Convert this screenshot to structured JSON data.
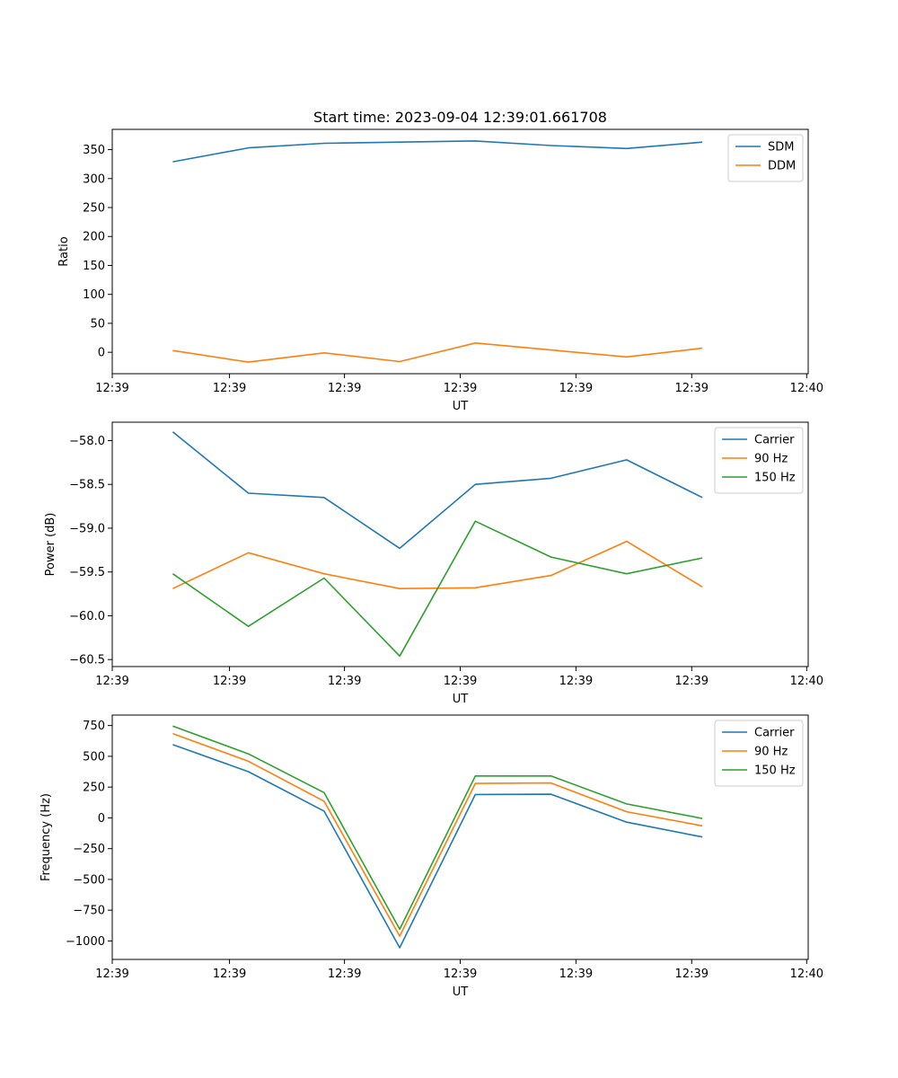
{
  "figure": {
    "title": "Start time: 2023-09-04 12:39:01.661708"
  },
  "chart_data": [
    {
      "type": "line",
      "title": "Start time: 2023-09-04 12:39:01.661708",
      "xlabel": "UT",
      "ylabel": "Ratio",
      "x": [
        1,
        2,
        3,
        4,
        5,
        6,
        7,
        8
      ],
      "xlim": [
        0.2,
        9.4
      ],
      "x_ticks": [
        0.2,
        1.75,
        3.27,
        4.8,
        6.33,
        7.86,
        9.38
      ],
      "x_tick_labels": [
        "12:39",
        "12:39",
        "12:39",
        "12:39",
        "12:39",
        "12:39",
        "12:40"
      ],
      "ylim": [
        -37,
        385
      ],
      "y_ticks": [
        0,
        50,
        100,
        150,
        200,
        250,
        300,
        350
      ],
      "y_tick_labels": [
        "0",
        "50",
        "100",
        "150",
        "200",
        "250",
        "300",
        "350"
      ],
      "legend_position": "top-right",
      "series": [
        {
          "name": "SDM",
          "color": "#1f77b4",
          "values": [
            329,
            353,
            361,
            363,
            365,
            357,
            352,
            363
          ]
        },
        {
          "name": "DDM",
          "color": "#ff7f0e",
          "values": [
            3,
            -17,
            -1,
            -16,
            16,
            4,
            -8,
            7
          ]
        }
      ]
    },
    {
      "type": "line",
      "title": "",
      "xlabel": "UT",
      "ylabel": "Power (dB)",
      "x": [
        1,
        2,
        3,
        4,
        5,
        6,
        7,
        8
      ],
      "xlim": [
        0.2,
        9.4
      ],
      "x_ticks": [
        0.2,
        1.75,
        3.27,
        4.8,
        6.33,
        7.86,
        9.38
      ],
      "x_tick_labels": [
        "12:39",
        "12:39",
        "12:39",
        "12:39",
        "12:39",
        "12:39",
        "12:40"
      ],
      "ylim": [
        -60.58,
        -57.79
      ],
      "y_ticks": [
        -60.5,
        -60.0,
        -59.5,
        -59.0,
        -58.5,
        -58.0
      ],
      "y_tick_labels": [
        "−60.5",
        "−60.0",
        "−59.5",
        "−59.0",
        "−58.5",
        "−58.0"
      ],
      "legend_position": "top-right",
      "series": [
        {
          "name": "Carrier",
          "color": "#1f77b4",
          "values": [
            -57.9,
            -58.6,
            -58.65,
            -59.23,
            -58.5,
            -58.43,
            -58.22,
            -58.65
          ]
        },
        {
          "name": "90 Hz",
          "color": "#ff7f0e",
          "values": [
            -59.69,
            -59.28,
            -59.52,
            -59.69,
            -59.68,
            -59.54,
            -59.15,
            -59.67
          ]
        },
        {
          "name": "150 Hz",
          "color": "#2ca02c",
          "values": [
            -59.52,
            -60.12,
            -59.57,
            -60.46,
            -58.92,
            -59.33,
            -59.52,
            -59.34
          ]
        }
      ]
    },
    {
      "type": "line",
      "title": "",
      "xlabel": "UT",
      "ylabel": "Frequency (Hz)",
      "x": [
        1,
        2,
        3,
        4,
        5,
        6,
        7,
        8
      ],
      "xlim": [
        0.2,
        9.4
      ],
      "x_ticks": [
        0.2,
        1.75,
        3.27,
        4.8,
        6.33,
        7.86,
        9.38
      ],
      "x_tick_labels": [
        "12:39",
        "12:39",
        "12:39",
        "12:39",
        "12:39",
        "12:39",
        "12:40"
      ],
      "ylim": [
        -1150,
        835
      ],
      "y_ticks": [
        -1000,
        -750,
        -500,
        -250,
        0,
        250,
        500,
        750
      ],
      "y_tick_labels": [
        "−1000",
        "−750",
        "−500",
        "−250",
        "0",
        "250",
        "500",
        "750"
      ],
      "legend_position": "top-right",
      "series": [
        {
          "name": "Carrier",
          "color": "#1f77b4",
          "values": [
            595,
            375,
            55,
            -1055,
            190,
            192,
            -35,
            -155
          ]
        },
        {
          "name": "90 Hz",
          "color": "#ff7f0e",
          "values": [
            685,
            460,
            135,
            -960,
            280,
            283,
            50,
            -65
          ]
        },
        {
          "name": "150 Hz",
          "color": "#2ca02c",
          "values": [
            745,
            520,
            205,
            -905,
            340,
            340,
            113,
            -5
          ]
        }
      ]
    }
  ]
}
